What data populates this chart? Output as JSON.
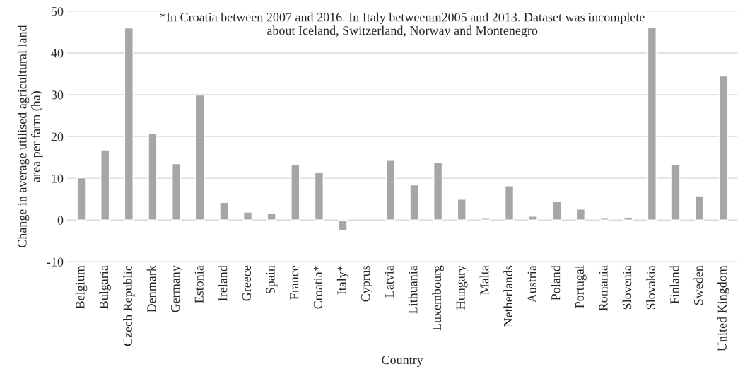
{
  "chart_data": {
    "type": "bar",
    "xlabel": "Country",
    "ylabel": "Change in average utilised agricultural land\narea per farm (ha)",
    "annotations": [
      "*In Croatia between 2007 and 2016. In Italy betweenm2005 and 2013. Dataset was incomplete\nabout Iceland, Switzerland, Norway and Montenegro"
    ],
    "categories": [
      "Belgium",
      "Bulgaria",
      "Czech Republic",
      "Denmark",
      "Germany",
      "Estonia",
      "Ireland",
      "Greece",
      "Spain",
      "France",
      "Croatia*",
      "Italy*",
      "Cyprus",
      "Latvia",
      "Lithuania",
      "Luxembourg",
      "Hungary",
      "Malta",
      "Netherlands",
      "Austria",
      "Poland",
      "Portugal",
      "Romania",
      "Slovenia",
      "Slovakia",
      "Finland",
      "Sweden",
      "United Kingdom"
    ],
    "values": [
      10.1,
      16.8,
      46,
      20.8,
      13.5,
      29.9,
      4.2,
      1.9,
      1.6,
      13.2,
      11.5,
      -2.5,
      null,
      14.3,
      8.4,
      13.7,
      5,
      0.4,
      8.2,
      0.9,
      4.4,
      2.6,
      0.4,
      0.6,
      46.2,
      13.2,
      5.8,
      34.5
    ],
    "color": "#a6a6a6",
    "ylim": [
      -10,
      50
    ],
    "yticks": [
      -10,
      0,
      10,
      20,
      30,
      40,
      50
    ],
    "grid": "y"
  }
}
